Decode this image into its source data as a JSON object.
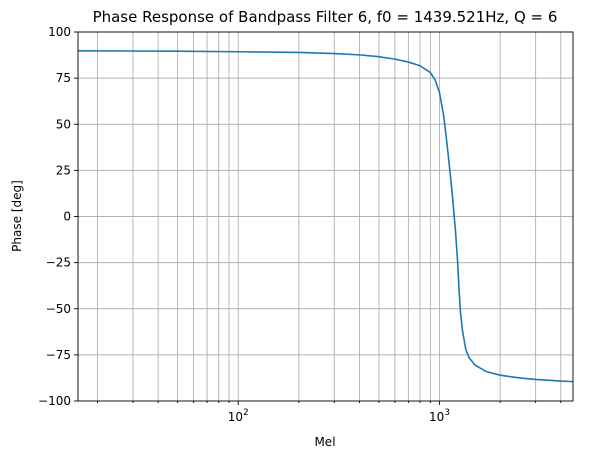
{
  "chart_data": {
    "type": "line",
    "title": "Phase Response of Bandpass Filter 6, f0 = 1439.521Hz, Q = 6",
    "xlabel": "Mel",
    "ylabel": "Phase [deg]",
    "xscale": "log",
    "xlim": [
      16,
      4600
    ],
    "ylim": [
      -100,
      100
    ],
    "grid": true,
    "x_major_ticks": [
      {
        "value": 100,
        "base": "10",
        "exp": "2"
      },
      {
        "value": 1000,
        "base": "10",
        "exp": "3"
      }
    ],
    "y_ticks": [
      {
        "value": 100,
        "label": "100"
      },
      {
        "value": 75,
        "label": "75"
      },
      {
        "value": 50,
        "label": "50"
      },
      {
        "value": 25,
        "label": "25"
      },
      {
        "value": 0,
        "label": "0"
      },
      {
        "value": -25,
        "label": "−25"
      },
      {
        "value": -50,
        "label": "−50"
      },
      {
        "value": -75,
        "label": "−75"
      },
      {
        "value": -100,
        "label": "−100"
      }
    ],
    "series": [
      {
        "color": "#1f77b4",
        "x": [
          16,
          50,
          100,
          200,
          300,
          400,
          500,
          600,
          700,
          800,
          900,
          950,
          1000,
          1050,
          1100,
          1150,
          1200,
          1230,
          1250,
          1270,
          1300,
          1350,
          1400,
          1500,
          1700,
          2000,
          2500,
          3000,
          4000,
          4600
        ],
        "y": [
          89.8,
          89.6,
          89.3,
          88.9,
          88.3,
          87.6,
          86.6,
          85.3,
          83.7,
          81.7,
          78.0,
          74.0,
          67.0,
          54.0,
          35.0,
          15.0,
          -8.0,
          -25.0,
          -40.0,
          -52.0,
          -62.0,
          -72.0,
          -76.5,
          -80.5,
          -84.0,
          -86.0,
          -87.5,
          -88.3,
          -89.2,
          -89.5
        ]
      }
    ]
  }
}
